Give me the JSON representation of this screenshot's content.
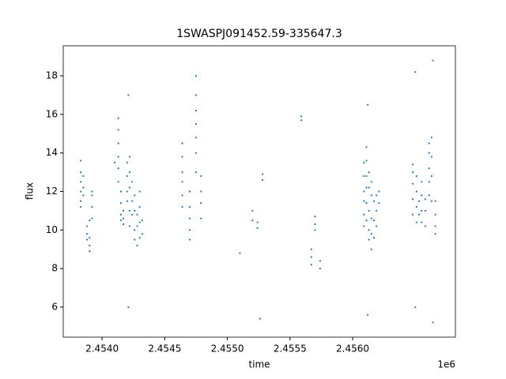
{
  "chart_data": {
    "type": "scatter",
    "title": "1SWASPJ091452.59-335647.3",
    "x_label": "time",
    "y_label": "flux",
    "x_offset_label": "1e6",
    "color": "#1f77b4",
    "x": [
      2.45383,
      2.45383,
      2.45383,
      2.45383,
      2.45383,
      2.45383,
      2.45385,
      2.45385,
      2.45385,
      2.45388,
      2.45388,
      2.45388,
      2.4539,
      2.4539,
      2.4539,
      2.4539,
      2.45392,
      2.45392,
      2.45392,
      2.45392,
      2.4541,
      2.45413,
      2.45413,
      2.45413,
      2.45413,
      2.45413,
      2.45413,
      2.45415,
      2.45415,
      2.45415,
      2.45415,
      2.45417,
      2.45417,
      2.45417,
      2.4542,
      2.4542,
      2.4542,
      2.4542,
      2.45422,
      2.45422,
      2.45422,
      2.45422,
      2.45422,
      2.45424,
      2.45424,
      2.45424,
      2.45426,
      2.45426,
      2.45426,
      2.45426,
      2.45428,
      2.45428,
      2.45428,
      2.4543,
      2.4543,
      2.4543,
      2.4543,
      2.45432,
      2.45432,
      2.45421,
      2.45421,
      2.45464,
      2.45464,
      2.45464,
      2.45464,
      2.45464,
      2.45464,
      2.4547,
      2.4547,
      2.4547,
      2.4547,
      2.4547,
      2.45475,
      2.45475,
      2.45475,
      2.45475,
      2.45475,
      2.45475,
      2.45475,
      2.45479,
      2.45479,
      2.45479,
      2.45479,
      2.4551,
      2.4552,
      2.4552,
      2.45524,
      2.45524,
      2.45528,
      2.45528,
      2.45526,
      2.45559,
      2.45559,
      2.45567,
      2.45567,
      2.45567,
      2.4557,
      2.4557,
      2.4557,
      2.45574,
      2.45574,
      2.45609,
      2.45609,
      2.45609,
      2.45609,
      2.45609,
      2.45609,
      2.45611,
      2.45611,
      2.45611,
      2.45611,
      2.45611,
      2.45611,
      2.45613,
      2.45613,
      2.45613,
      2.45613,
      2.45613,
      2.45615,
      2.45615,
      2.45615,
      2.45615,
      2.45615,
      2.45617,
      2.45617,
      2.45617,
      2.45619,
      2.45619,
      2.45619,
      2.45621,
      2.45621,
      2.45612,
      2.45612,
      2.45648,
      2.45648,
      2.45648,
      2.45648,
      2.45648,
      2.45651,
      2.45651,
      2.45651,
      2.45651,
      2.45653,
      2.45653,
      2.45655,
      2.45655,
      2.45655,
      2.45655,
      2.45658,
      2.45658,
      2.45658,
      2.45661,
      2.45661,
      2.45661,
      2.45661,
      2.45661,
      2.45663,
      2.45663,
      2.45663,
      2.45663,
      2.45666,
      2.45666,
      2.45666,
      2.45666,
      2.4565,
      2.4565,
      2.45664,
      2.45664
    ],
    "values": [
      13.6,
      13.0,
      12.5,
      12.0,
      11.5,
      11.2,
      12.8,
      12.2,
      11.8,
      10.2,
      9.8,
      9.5,
      10.5,
      9.2,
      8.9,
      9.6,
      11.8,
      11.2,
      10.6,
      12.0,
      13.5,
      15.8,
      15.2,
      14.5,
      13.8,
      13.2,
      12.5,
      12.0,
      11.4,
      10.8,
      10.5,
      11.0,
      10.3,
      10.6,
      13.5,
      12.8,
      12.0,
      11.5,
      13.8,
      13.0,
      12.2,
      11.0,
      10.2,
      12.5,
      11.5,
      10.8,
      11.8,
      11.0,
      10.0,
      9.5,
      10.8,
      10.2,
      9.2,
      12.0,
      11.2,
      10.4,
      9.6,
      10.5,
      9.8,
      17.0,
      6.0,
      14.5,
      13.8,
      13.0,
      12.5,
      11.8,
      11.2,
      12.0,
      11.2,
      10.6,
      10.0,
      9.5,
      18.0,
      17.0,
      16.2,
      15.5,
      14.8,
      14.0,
      13.0,
      12.8,
      12.0,
      11.4,
      10.6,
      8.8,
      11.0,
      10.5,
      10.4,
      10.1,
      12.9,
      12.6,
      5.4,
      15.9,
      15.7,
      9.0,
      8.6,
      8.2,
      10.7,
      10.3,
      10.0,
      8.4,
      8.0,
      13.5,
      12.8,
      12.0,
      11.5,
      10.8,
      10.2,
      14.3,
      13.6,
      12.8,
      12.2,
      11.4,
      10.5,
      13.0,
      12.2,
      11.0,
      10.0,
      9.5,
      12.5,
      11.8,
      10.6,
      9.8,
      9.0,
      11.5,
      10.5,
      9.6,
      11.8,
      11.0,
      10.2,
      12.0,
      11.4,
      16.5,
      5.6,
      13.4,
      13.0,
      12.4,
      11.6,
      10.8,
      12.8,
      12.0,
      11.2,
      10.4,
      11.5,
      10.8,
      12.5,
      11.8,
      11.0,
      10.4,
      11.6,
      11.0,
      10.2,
      14.5,
      14.0,
      13.2,
      12.5,
      11.8,
      14.8,
      13.8,
      12.8,
      11.5,
      11.5,
      10.8,
      10.2,
      9.8,
      18.2,
      6.0,
      18.8,
      5.2
    ],
    "xlim": [
      2.45369,
      2.45682
    ],
    "ylim": [
      4.44,
      19.56
    ],
    "xticks": [
      {
        "value": 2.454,
        "label": "2.4540"
      },
      {
        "value": 2.4545,
        "label": "2.4545"
      },
      {
        "value": 2.455,
        "label": "2.4550"
      },
      {
        "value": 2.4555,
        "label": "2.4555"
      },
      {
        "value": 2.456,
        "label": "2.4560"
      }
    ],
    "yticks": [
      6,
      8,
      10,
      12,
      14,
      16,
      18
    ]
  }
}
